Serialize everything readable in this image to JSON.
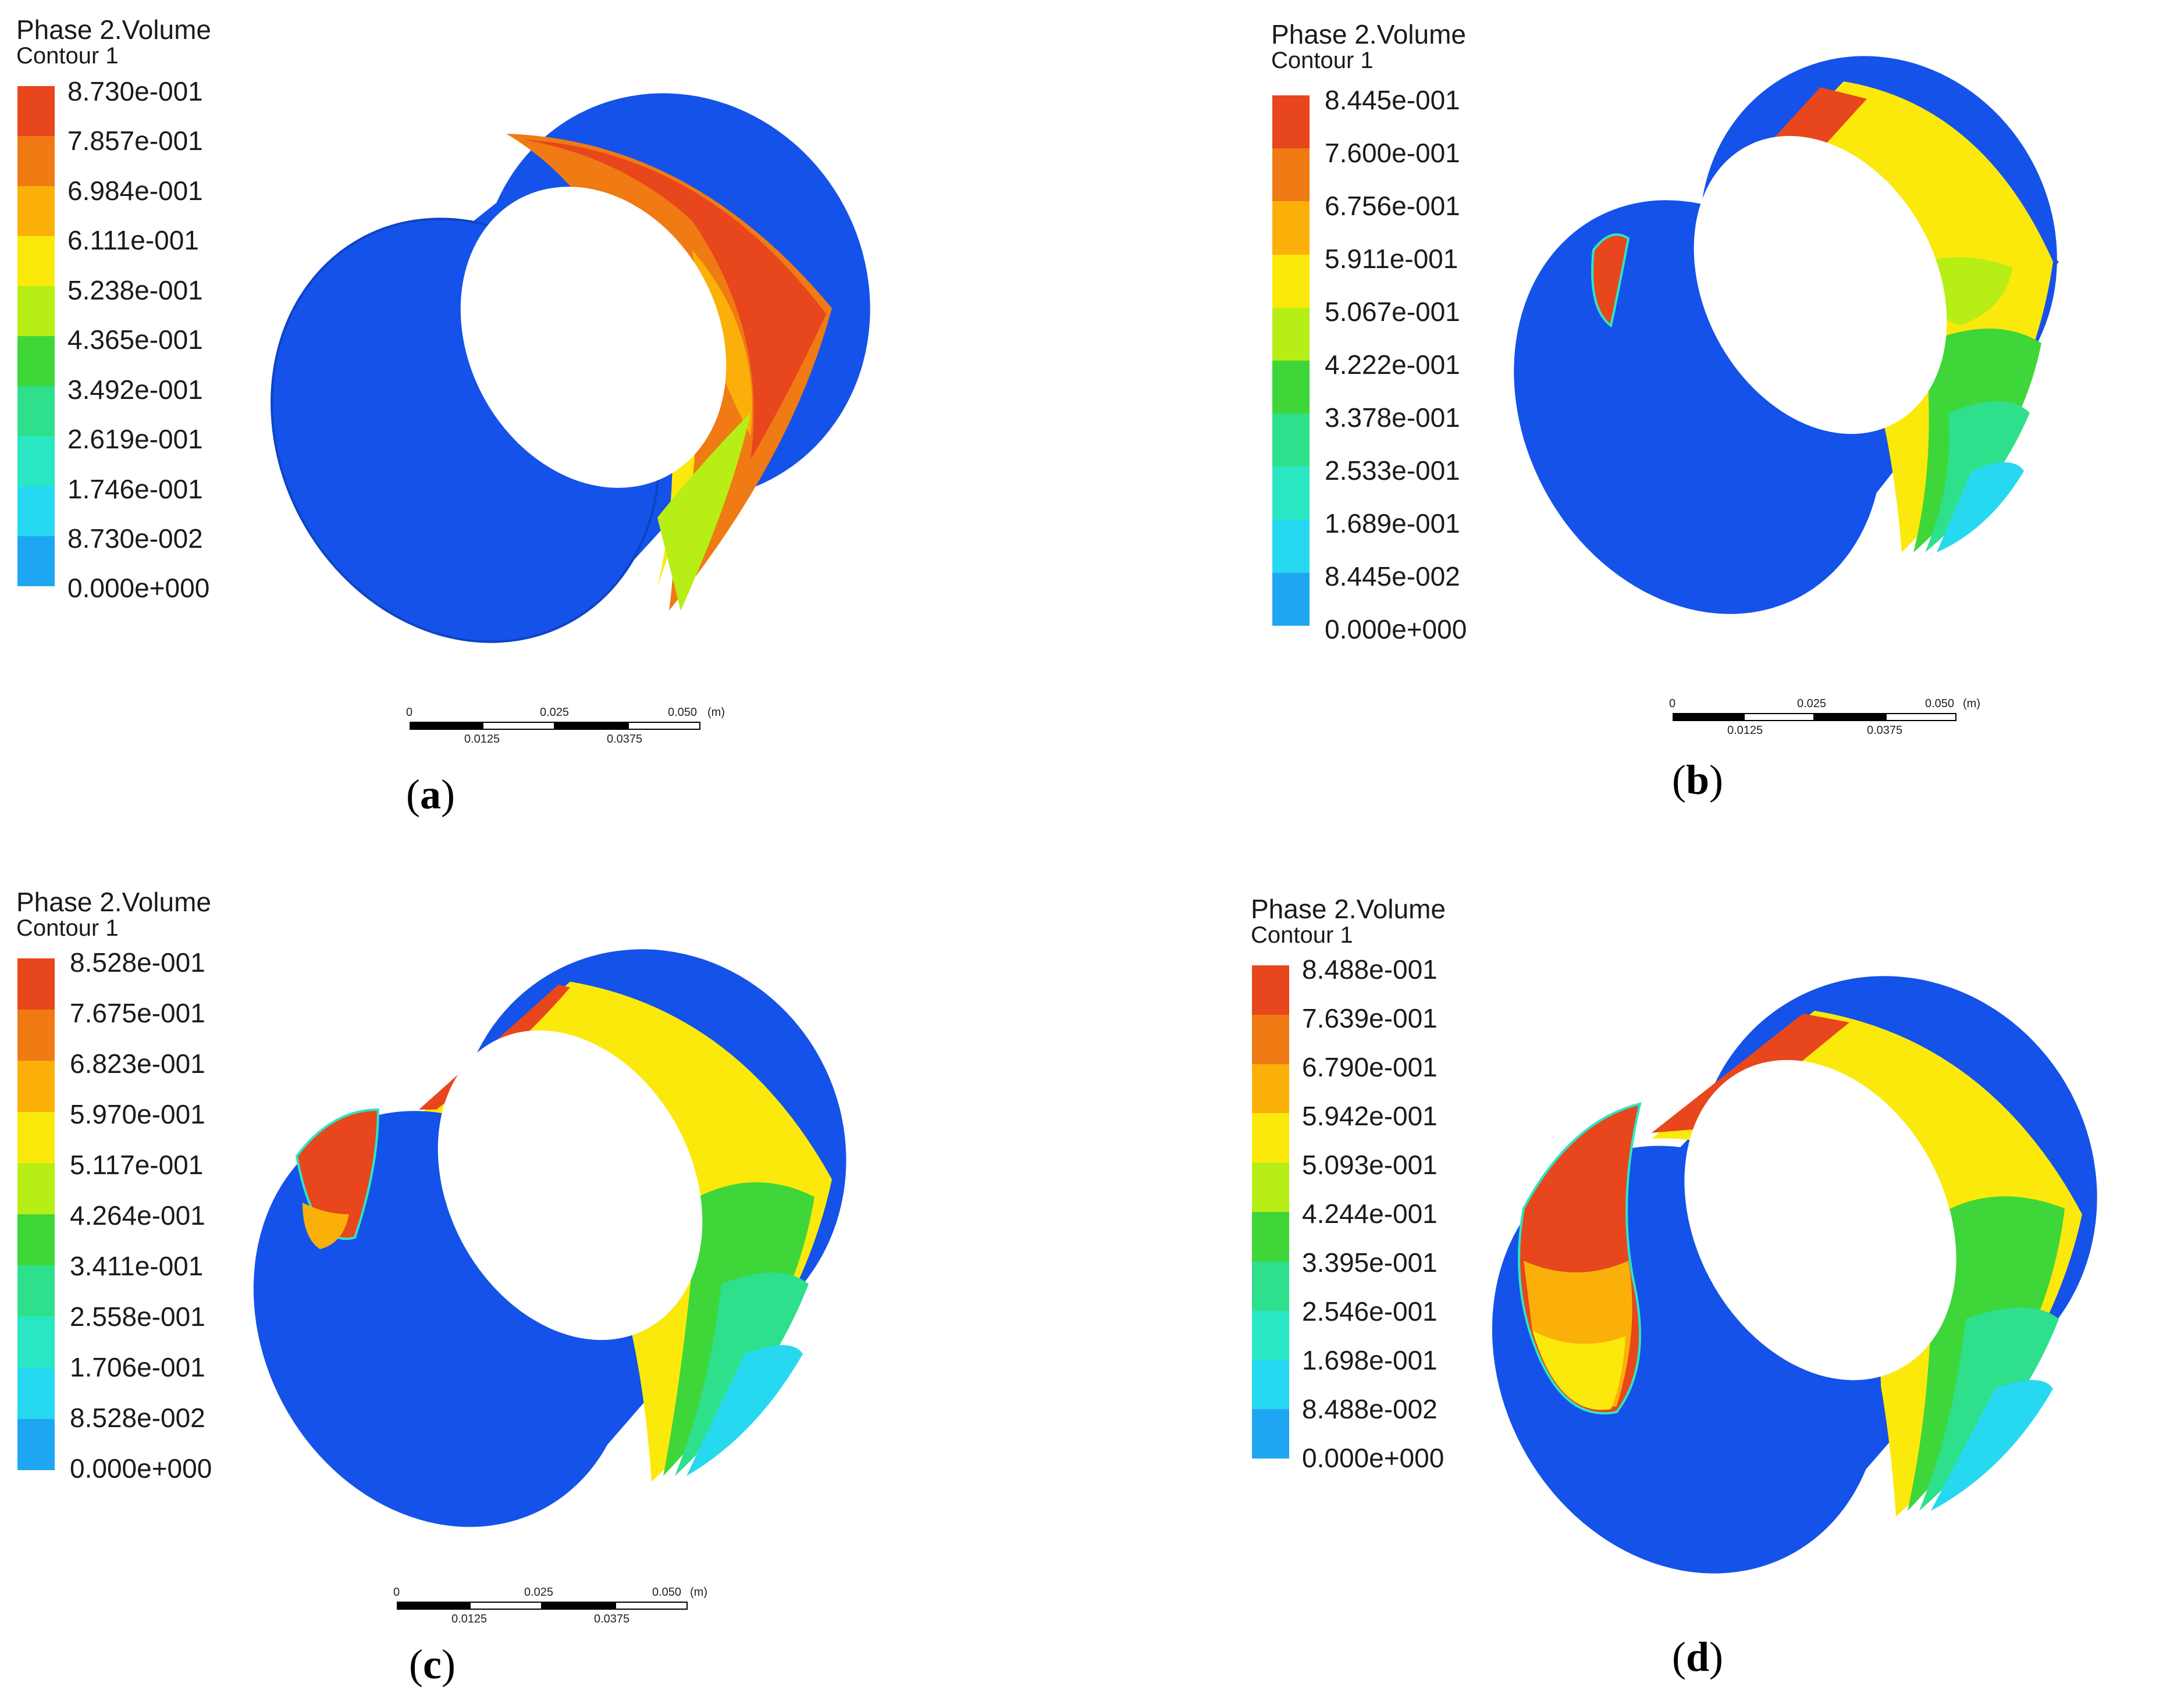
{
  "figure": {
    "panels": [
      {
        "id": "a",
        "label": "a",
        "legend": {
          "title": "Phase 2.Volume",
          "subtitle": "Contour 1",
          "values": [
            "8.730e-001",
            "7.857e-001",
            "6.984e-001",
            "6.111e-001",
            "5.238e-001",
            "4.365e-001",
            "3.492e-001",
            "2.619e-001",
            "1.746e-001",
            "8.730e-002",
            "0.000e+000"
          ]
        },
        "scale": {
          "top": [
            "0",
            "0.025",
            "0.050"
          ],
          "bottom": [
            "0.0125",
            "0.0375"
          ],
          "unit": "(m)"
        }
      },
      {
        "id": "b",
        "label": "b",
        "legend": {
          "title": "Phase 2.Volume",
          "subtitle": "Contour 1",
          "values": [
            "8.445e-001",
            "7.600e-001",
            "6.756e-001",
            "5.911e-001",
            "5.067e-001",
            "4.222e-001",
            "3.378e-001",
            "2.533e-001",
            "1.689e-001",
            "8.445e-002",
            "0.000e+000"
          ]
        },
        "scale": {
          "top": [
            "0",
            "0.025",
            "0.050"
          ],
          "bottom": [
            "0.0125",
            "0.0375"
          ],
          "unit": "(m)"
        }
      },
      {
        "id": "c",
        "label": "c",
        "legend": {
          "title": "Phase 2.Volume",
          "subtitle": "Contour 1",
          "values": [
            "8.528e-001",
            "7.675e-001",
            "6.823e-001",
            "5.970e-001",
            "5.117e-001",
            "4.264e-001",
            "3.411e-001",
            "2.558e-001",
            "1.706e-001",
            "8.528e-002",
            "0.000e+000"
          ]
        },
        "scale": {
          "top": [
            "0",
            "0.025",
            "0.050"
          ],
          "bottom": [
            "0.0125",
            "0.0375"
          ],
          "unit": "(m)"
        }
      },
      {
        "id": "d",
        "label": "d",
        "legend": {
          "title": "Phase 2.Volume",
          "subtitle": "Contour 1",
          "values": [
            "8.488e-001",
            "7.639e-001",
            "6.790e-001",
            "5.942e-001",
            "5.093e-001",
            "4.244e-001",
            "3.395e-001",
            "2.546e-001",
            "1.698e-001",
            "8.488e-002",
            "0.000e+000"
          ]
        }
      }
    ],
    "colormap": [
      "#e8461c",
      "#f07a14",
      "#fbb009",
      "#fbe90b",
      "#b6ee16",
      "#3fd63a",
      "#2ee08b",
      "#2ae7c4",
      "#27d9f0",
      "#1fa6f2",
      "#1452e9"
    ]
  }
}
